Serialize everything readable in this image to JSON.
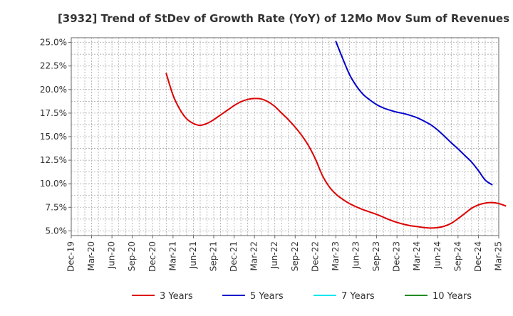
{
  "chart_data": {
    "type": "line",
    "title": "[3932]  Trend of StDev of Growth Rate (YoY) of 12Mo Mov Sum of Revenues",
    "xlabel": "",
    "ylabel": "",
    "ylim": [
      4.5,
      25.5
    ],
    "yticks": [
      5.0,
      7.5,
      10.0,
      12.5,
      15.0,
      17.5,
      20.0,
      22.5,
      25.0
    ],
    "ytick_labels": [
      "5.0%",
      "7.5%",
      "10.0%",
      "12.5%",
      "15.0%",
      "17.5%",
      "20.0%",
      "22.5%",
      "25.0%"
    ],
    "x_start": "Dec-19",
    "x_month_count": 63,
    "xtick_labels": [
      "Dec-19",
      "Mar-20",
      "Jun-20",
      "Sep-20",
      "Dec-20",
      "Mar-21",
      "Jun-21",
      "Sep-21",
      "Dec-21",
      "Mar-22",
      "Jun-22",
      "Sep-22",
      "Dec-22",
      "Mar-23",
      "Jun-23",
      "Sep-23",
      "Dec-23",
      "Mar-24",
      "Jun-24",
      "Sep-24",
      "Dec-24",
      "Mar-25"
    ],
    "grid": true,
    "legend_position": "bottom",
    "series": [
      {
        "name": "3 Years",
        "color": "#dd0000",
        "start_month": 14,
        "values": [
          21.7,
          19.4,
          17.9,
          16.9,
          16.4,
          16.2,
          16.4,
          16.8,
          17.3,
          17.8,
          18.3,
          18.7,
          18.95,
          19.05,
          19.0,
          18.7,
          18.2,
          17.5,
          16.8,
          16.0,
          15.1,
          14.0,
          12.6,
          10.9,
          9.7,
          8.9,
          8.35,
          7.9,
          7.55,
          7.25,
          7.0,
          6.75,
          6.45,
          6.15,
          5.9,
          5.7,
          5.55,
          5.45,
          5.35,
          5.3,
          5.35,
          5.5,
          5.8,
          6.3,
          6.85,
          7.4,
          7.75,
          7.95,
          8.0,
          7.9,
          7.65
        ]
      },
      {
        "name": "5 Years",
        "color": "#0000cc",
        "start_month": 39,
        "values": [
          25.1,
          23.3,
          21.6,
          20.4,
          19.5,
          18.9,
          18.4,
          18.05,
          17.8,
          17.6,
          17.45,
          17.25,
          17.0,
          16.65,
          16.25,
          15.7,
          15.05,
          14.35,
          13.7,
          13.0,
          12.3,
          11.4,
          10.4,
          9.9
        ]
      },
      {
        "name": "7 Years",
        "color": "#00e5ee",
        "start_month": 0,
        "values": []
      },
      {
        "name": "10 Years",
        "color": "#228b22",
        "start_month": 0,
        "values": []
      }
    ]
  }
}
